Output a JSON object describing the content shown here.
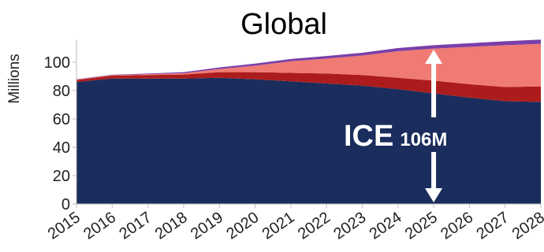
{
  "chart_data": {
    "type": "area",
    "title": "Global",
    "xlabel": "",
    "ylabel": "Millions",
    "x": [
      2015,
      2016,
      2017,
      2018,
      2019,
      2020,
      2021,
      2022,
      2023,
      2024,
      2025,
      2026,
      2027,
      2028
    ],
    "x_tick_labels": [
      "2015",
      "2016",
      "2017",
      "2018",
      "2019",
      "2020",
      "2021",
      "2022",
      "2023",
      "2024",
      "2025",
      "2026",
      "2027",
      "2028"
    ],
    "y_ticks": [
      0,
      20,
      40,
      60,
      80,
      100
    ],
    "y_tick_labels": [
      "0",
      "20",
      "40",
      "60",
      "80",
      "100"
    ],
    "ylim": [
      0,
      116
    ],
    "grid": false,
    "stacked": true,
    "series": [
      {
        "color": "#1a2d5c",
        "values": [
          86,
          88.5,
          88.5,
          88.5,
          89,
          88,
          86.5,
          85,
          83.5,
          81,
          78,
          75,
          72.5,
          72
        ]
      },
      {
        "color": "#ad1c1c",
        "values": [
          1.5,
          2,
          2.5,
          2.8,
          4,
          5,
          6,
          7,
          7.5,
          8,
          9,
          9.5,
          10,
          11
        ]
      },
      {
        "color": "#f07a74",
        "values": [
          0.3,
          0.4,
          0.6,
          0.9,
          2.2,
          4.6,
          8.2,
          10.6,
          13.7,
          18.8,
          22.6,
          26.3,
          29.5,
          30
        ]
      },
      {
        "color": "#7a3fa8",
        "values": [
          0.2,
          0.3,
          0.4,
          0.8,
          1.1,
          1.4,
          1.6,
          1.8,
          2.0,
          2.2,
          2.4,
          2.6,
          2.8,
          3
        ]
      }
    ],
    "annotation": {
      "main_text": "ICE",
      "sub_text": "106M",
      "x": 2025,
      "y_from": 0,
      "y_to": 110,
      "arrow_color": "#ffffff"
    }
  }
}
